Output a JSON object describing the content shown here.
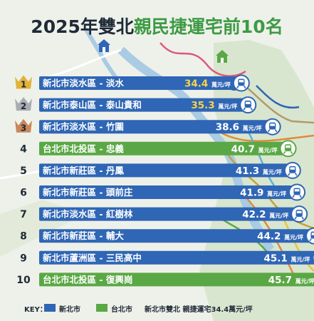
{
  "title": {
    "part1": "2025年雙北",
    "part2": "親民捷運宅前",
    "part3": "10名"
  },
  "chart_data": {
    "type": "bar",
    "title": "2025年雙北親民捷運宅前10名",
    "unit": "萬元/坪",
    "ranks": [
      "1",
      "2",
      "3",
      "4",
      "5",
      "6",
      "7",
      "8",
      "9",
      "10"
    ],
    "categories": [
      "新北市淡水區 - 淡水",
      "新北市泰山區 - 泰山貴和",
      "新北市淡水區 - 竹圍",
      "台北市北投區 - 忠義",
      "新北市新莊區 - 丹鳳",
      "新北市新莊區 - 頭前庄",
      "新北市淡水區 - 紅樹林",
      "新北市新莊區 - 輔大",
      "新北市蘆洲區 - 三民高中",
      "台北市北投區 - 復興崗"
    ],
    "values": [
      34.4,
      35.3,
      38.6,
      40.7,
      41.3,
      41.9,
      42.2,
      44.2,
      45.1,
      45.7
    ],
    "city": [
      "ntp",
      "ntp",
      "ntp",
      "tp",
      "ntp",
      "ntp",
      "ntp",
      "ntp",
      "ntp",
      "tp"
    ],
    "colors": {
      "ntp": "#2f66b5",
      "tp": "#5aa845",
      "gold": "#e2b23a",
      "silver": "#a9adb3",
      "bronze": "#c9875a",
      "dark": "#1f2a36"
    },
    "legend": {
      "key_label": "KEY：",
      "items": [
        {
          "label": "新北市",
          "color": "#2f66b5"
        },
        {
          "label": "台北市",
          "color": "#5aa845"
        }
      ],
      "note": "新北市雙北 親捷運宅34.4萬元/坪"
    }
  }
}
